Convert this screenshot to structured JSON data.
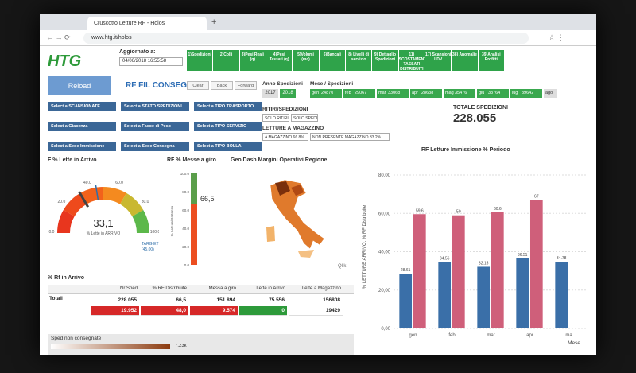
{
  "browser": {
    "tab_title": "Cruscotto Letture RF - Holos",
    "url": "www.htg.it/holos"
  },
  "header": {
    "logo": "HTG",
    "updated_label": "Aggiornato a:",
    "updated_value": "04/06/2018 16:55:58",
    "reload": "Reload",
    "app_title": "RF FIL CONSEGNA"
  },
  "tabs": [
    "1)Spedizioni",
    "2)Colli",
    "3)Pesi Reali (q)",
    "4)Pesi Tassati (q)",
    "5)Volumi (mc)",
    "6)Bancali",
    "8) Livelli di servizio",
    "9) Dettaglio Spedizioni",
    "11) SCOSTAMENTI TASSATI DISTRIBUITI",
    "17) Scansioni LDV",
    "38) Anomalie",
    "39)Analisi Profitti"
  ],
  "nav_buttons": [
    "Clear",
    "Back",
    "Forward"
  ],
  "filters": [
    "Select a SCANSIONATE",
    "Select a STATO SPEDIZIONI",
    "Select a TIPO TRASPORTO",
    "Select a Giacenza",
    "Select a Fasce di Peso",
    "Select a TIPO SERVIZIO",
    "Select a Sede Immissione",
    "Select a Sede Consegna",
    "Select a TIPO BOLLA"
  ],
  "anno": {
    "label": "Anno Spedizioni",
    "values": [
      2017,
      2018
    ]
  },
  "mesi": {
    "label": "Mese / Spedizioni",
    "items": [
      {
        "month": "gen",
        "count": 24870
      },
      {
        "month": "feb",
        "count": 29067
      },
      {
        "month": "mar",
        "count": 33068
      },
      {
        "month": "apr",
        "count": 28638
      },
      {
        "month": "mag",
        "count": 35476
      },
      {
        "month": "giu",
        "count": 33764
      },
      {
        "month": "lug",
        "count": 39642
      },
      {
        "month": "ago"
      }
    ]
  },
  "ritiri": {
    "label": "RITIRI/SPEDIZIONI",
    "buttons": [
      "SOLO RITIRI",
      "SOLO SPEDIZIONI"
    ]
  },
  "letture": {
    "label": "LETTURE A MAGAZZINO",
    "buttons": [
      "A MAGAZZINO 66.8%",
      "NON PRESENTE MAGAZZINO 33.2%"
    ]
  },
  "totale": {
    "label": "TOTALE SPEDIZIONI",
    "value": "228.055"
  },
  "gauge": {
    "title": "F % Lette in Arrivo",
    "value": 33.1,
    "value_label": "33,1",
    "sublabel": "% Lette in ARRIVO",
    "ticks": [
      {
        "value": 0,
        "label": "0.0"
      },
      {
        "value": 20,
        "label": "20.0"
      },
      {
        "value": 40,
        "label": "40.0"
      },
      {
        "value": 60,
        "label": "60.0"
      },
      {
        "value": 80,
        "label": "80.0"
      },
      {
        "value": 100,
        "label": "100.0"
      }
    ],
    "target_label": "TARG-ET",
    "target": {
      "value": 45,
      "label": "(45.00)"
    }
  },
  "rf_messe": {
    "title": "RF % Messe a giro",
    "axis_label": "% Letture/Partenza",
    "value": 66.5,
    "value_label": "66,5",
    "ticks": [
      {
        "value": 0,
        "label": "0.0"
      },
      {
        "value": 20,
        "label": "20.0"
      },
      {
        "value": 40,
        "label": "40.0"
      },
      {
        "value": 60,
        "label": "60.0"
      },
      {
        "value": 80,
        "label": "80.0"
      },
      {
        "value": 100,
        "label": "100.0"
      }
    ]
  },
  "map": {
    "title": "Geo Dash Margini Operativi Regione",
    "source": "Qlik"
  },
  "table": {
    "title": "% Rf in Arrivo",
    "columns": [
      "Nr Sped",
      "% RF Distribuite",
      "Messa a giro",
      "Lette in Arrivo",
      "Lette a Magazzino"
    ],
    "rows": [
      {
        "label": "Totali",
        "cells": [
          "228.055",
          "66,5",
          "151.894",
          "75.556",
          "156808"
        ]
      },
      {
        "cells": [
          "19.952",
          "48,0",
          "9.574",
          "0",
          "19429"
        ]
      }
    ]
  },
  "legend": {
    "label": "Sped non consegnate",
    "max": "7.23k"
  },
  "chart_data": {
    "type": "bar",
    "title": "RF Letture Immissione % Periodo",
    "y_label": "% LETTURE ARRIVO, % RF Distribuite",
    "x_label": "Mese",
    "categories": [
      "gen",
      "feb",
      "mar",
      "apr",
      "ma"
    ],
    "series": [
      {
        "name": "% Letture Arrivo",
        "color": "#3a6fa8",
        "values": [
          28.61,
          34.56,
          32.15,
          36.51,
          34.78
        ]
      },
      {
        "name": "% RF Distribuite",
        "color": "#cf5f7a",
        "values": [
          59.6,
          59,
          60.6,
          67,
          null
        ]
      }
    ],
    "ylim": [
      0,
      85
    ],
    "yticks": [
      {
        "value": 0,
        "label": "0,00"
      },
      {
        "value": 20,
        "label": "20,00"
      },
      {
        "value": 40,
        "label": "40,00"
      },
      {
        "value": 60,
        "label": "60,00"
      },
      {
        "value": 80,
        "label": "80,00"
      }
    ],
    "grid": true
  }
}
